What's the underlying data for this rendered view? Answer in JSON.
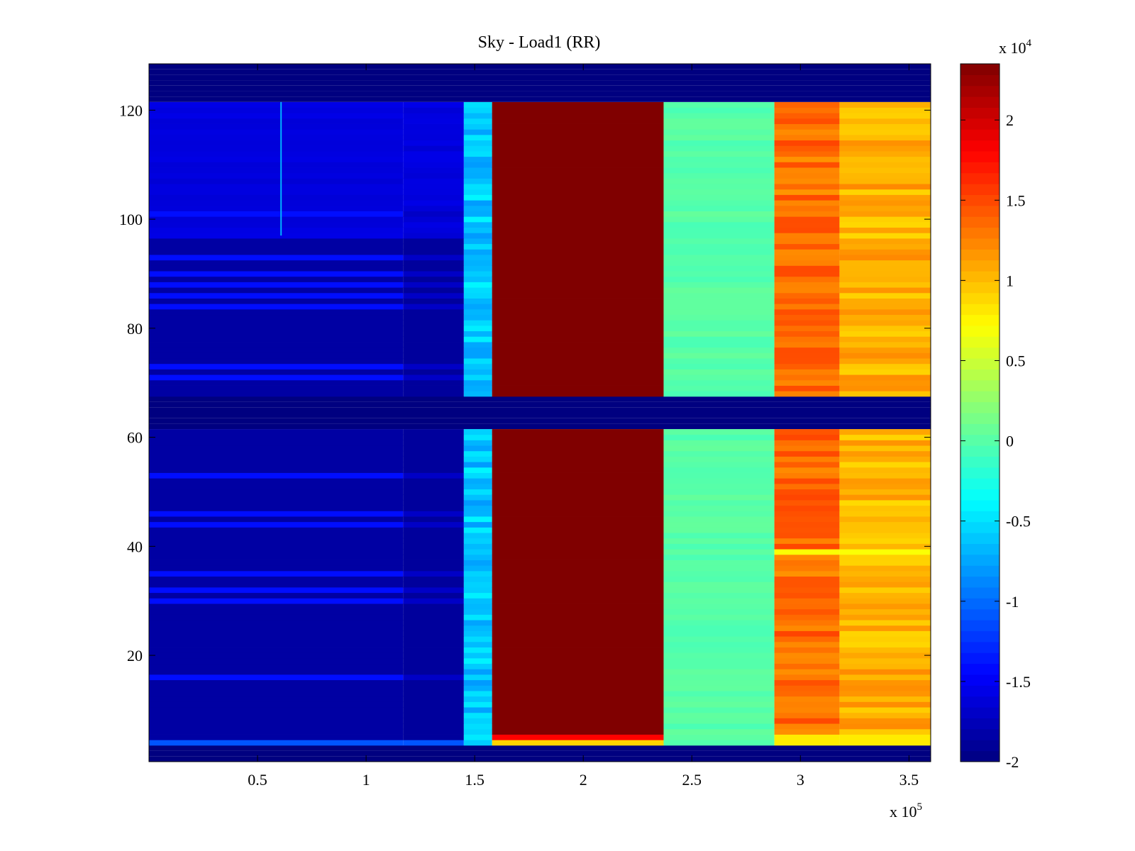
{
  "chart_data": {
    "type": "heatmap",
    "title": "Sky - Load1 (RR)",
    "xlabel": "",
    "ylabel": "",
    "x_multiplier": {
      "base": "x 10",
      "exponent": "5"
    },
    "xlim": [
      0,
      3.6
    ],
    "ylim": [
      0.5,
      128.5
    ],
    "x_ticks": [
      0.5,
      1,
      1.5,
      2,
      2.5,
      3,
      3.5
    ],
    "x_tick_labels": [
      "0.5",
      "1",
      "1.5",
      "2",
      "2.5",
      "3",
      "3.5"
    ],
    "y_ticks": [
      20,
      40,
      60,
      80,
      100,
      120
    ],
    "y_tick_labels": [
      "20",
      "40",
      "60",
      "80",
      "100",
      "120"
    ],
    "colorbar": {
      "multiplier": {
        "base": "x 10",
        "exponent": "4"
      },
      "clim": [
        -2,
        2.35
      ],
      "ticks": [
        -2,
        -1.5,
        -1,
        -0.5,
        0,
        0.5,
        1,
        1.5,
        2
      ],
      "tick_labels": [
        "-2",
        "-1.5",
        "-1",
        "-0.5",
        "0",
        "0.5",
        "1",
        "1.5",
        "2"
      ],
      "colormap": "jet"
    },
    "rows": 128,
    "empty_channels": [
      [
        1,
        3
      ],
      [
        62,
        67
      ],
      [
        122,
        128
      ]
    ],
    "bands": [
      {
        "x_start": 0.0,
        "x_end": 1.17,
        "level": -1.85,
        "label": "low (dark blue)"
      },
      {
        "x_start": 1.17,
        "x_end": 1.45,
        "level": -1.88,
        "label": "low (dark blue)"
      },
      {
        "x_start": 1.45,
        "x_end": 1.58,
        "level": -0.6,
        "label": "cyan"
      },
      {
        "x_start": 1.58,
        "x_end": 2.37,
        "level": 2.35,
        "label": "max (dark red)"
      },
      {
        "x_start": 2.37,
        "x_end": 2.88,
        "level": 0.0,
        "label": "green"
      },
      {
        "x_start": 2.88,
        "x_end": 3.18,
        "level": 1.35,
        "label": "orange-red"
      },
      {
        "x_start": 3.18,
        "x_end": 3.6,
        "level": 1.05,
        "label": "orange"
      }
    ],
    "bright_rows_left": [
      101,
      93,
      90,
      88,
      86,
      84,
      73,
      71,
      53,
      46,
      44,
      35,
      32,
      30,
      16,
      4
    ],
    "upper_block_rows": [
      97,
      121
    ]
  }
}
